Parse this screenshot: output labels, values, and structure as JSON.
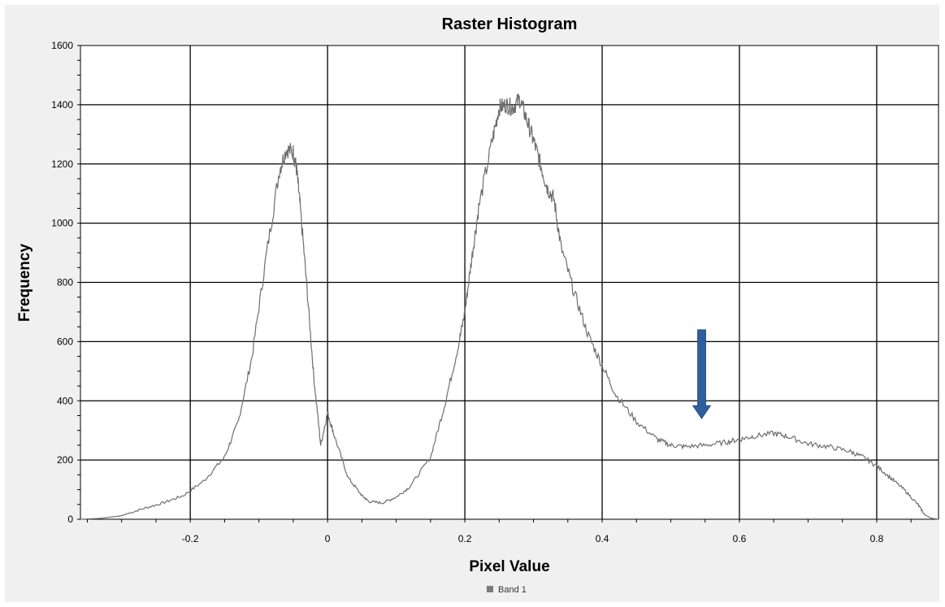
{
  "colors": {
    "background": "#f0f0f0",
    "plot_background": "#ffffff",
    "grid": "#000000",
    "line": "#6e6e6e",
    "arrow": "#2f5e9e",
    "legend_swatch": "#7a7a7a"
  },
  "chart_data": {
    "type": "line",
    "title": "Raster Histogram",
    "xlabel": "Pixel Value",
    "ylabel": "Frequency",
    "xlim": [
      -0.36,
      0.89
    ],
    "ylim": [
      0,
      1600
    ],
    "x_ticks": [
      -0.2,
      0,
      0.2,
      0.4,
      0.6,
      0.8
    ],
    "x_tick_labels": [
      "-0.2",
      "0",
      "0.2",
      "0.4",
      "0.6",
      "0.8"
    ],
    "y_ticks": [
      0,
      200,
      400,
      600,
      800,
      1000,
      1200,
      1400,
      1600
    ],
    "y_tick_labels": [
      "0",
      "200",
      "400",
      "600",
      "800",
      "1000",
      "1200",
      "1400",
      "1600"
    ],
    "grid": true,
    "legend_position": "bottom-center",
    "series": [
      {
        "name": "Band 1",
        "x": [
          -0.36,
          -0.33,
          -0.3,
          -0.27,
          -0.24,
          -0.21,
          -0.18,
          -0.15,
          -0.13,
          -0.11,
          -0.09,
          -0.07,
          -0.06,
          -0.05,
          -0.045,
          -0.04,
          -0.03,
          -0.02,
          -0.01,
          0,
          0.01,
          0.03,
          0.05,
          0.06,
          0.08,
          0.1,
          0.12,
          0.15,
          0.17,
          0.19,
          0.2,
          0.21,
          0.22,
          0.24,
          0.25,
          0.26,
          0.27,
          0.28,
          0.29,
          0.3,
          0.31,
          0.32,
          0.33,
          0.34,
          0.36,
          0.38,
          0.4,
          0.42,
          0.45,
          0.48,
          0.5,
          0.52,
          0.55,
          0.58,
          0.6,
          0.62,
          0.65,
          0.67,
          0.7,
          0.73,
          0.76,
          0.78,
          0.8,
          0.82,
          0.84,
          0.86,
          0.87,
          0.88,
          0.89
        ],
        "y": [
          0,
          3,
          12,
          35,
          55,
          80,
          130,
          210,
          330,
          550,
          880,
          1180,
          1250,
          1240,
          1180,
          1060,
          780,
          480,
          250,
          360,
          280,
          140,
          80,
          60,
          55,
          75,
          110,
          210,
          380,
          580,
          700,
          880,
          1050,
          1280,
          1390,
          1400,
          1390,
          1420,
          1350,
          1280,
          1200,
          1120,
          1080,
          920,
          760,
          620,
          520,
          420,
          330,
          270,
          250,
          245,
          250,
          260,
          270,
          280,
          290,
          280,
          255,
          245,
          230,
          210,
          180,
          140,
          100,
          50,
          15,
          3,
          0
        ]
      }
    ],
    "annotations": [
      {
        "type": "arrow",
        "direction": "down",
        "x": 0.545,
        "y_from": 640,
        "y_to": 340
      }
    ]
  }
}
